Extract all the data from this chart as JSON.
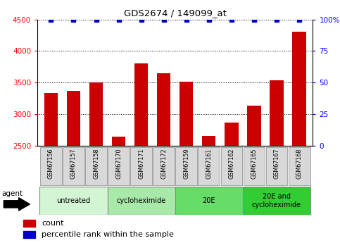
{
  "title": "GDS2674 / 149099_at",
  "samples": [
    "GSM67156",
    "GSM67157",
    "GSM67158",
    "GSM67170",
    "GSM67171",
    "GSM67172",
    "GSM67159",
    "GSM67161",
    "GSM67162",
    "GSM67165",
    "GSM67167",
    "GSM67168"
  ],
  "counts": [
    3340,
    3375,
    3500,
    2645,
    3800,
    3650,
    3520,
    2660,
    2870,
    3130,
    3540,
    4310
  ],
  "percentile_ranks": [
    100,
    100,
    100,
    100,
    100,
    100,
    100,
    100,
    100,
    100,
    100,
    100
  ],
  "bar_color": "#cc0000",
  "dot_color": "#0000cc",
  "ylim_left": [
    2500,
    4500
  ],
  "ylim_right": [
    0,
    100
  ],
  "yticks_left": [
    2500,
    3000,
    3500,
    4000,
    4500
  ],
  "yticks_right": [
    0,
    25,
    50,
    75,
    100
  ],
  "ylabel_right_labels": [
    "0",
    "25",
    "50",
    "75",
    "100%"
  ],
  "groups": [
    {
      "label": "untreated",
      "start": 0,
      "end": 3,
      "color": "#d4f5d4"
    },
    {
      "label": "cycloheximide",
      "start": 3,
      "end": 6,
      "color": "#a8e8a8"
    },
    {
      "label": "20E",
      "start": 6,
      "end": 9,
      "color": "#66dd66"
    },
    {
      "label": "20E and\ncycloheximide",
      "start": 9,
      "end": 12,
      "color": "#33cc33"
    }
  ],
  "legend_count_label": "count",
  "legend_pct_label": "percentile rank within the sample"
}
